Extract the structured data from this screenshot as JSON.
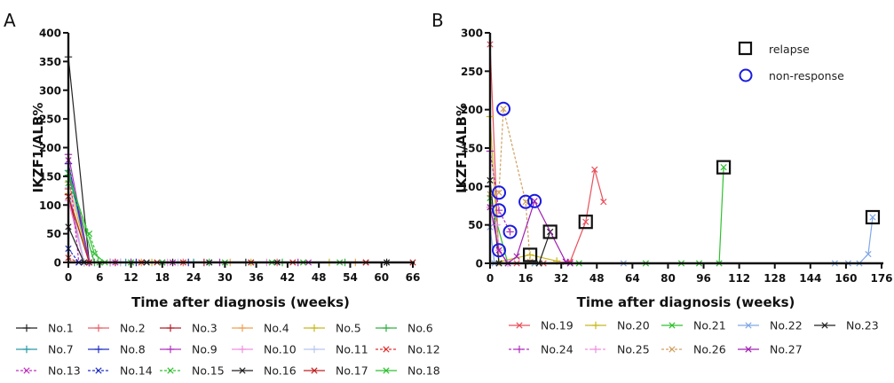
{
  "chart_data": [
    {
      "panel": "A",
      "type": "line",
      "xlabel": "Time after diagnosis (weeks)",
      "ylabel": "IKZF1/ALB%",
      "xlim": [
        0,
        66
      ],
      "ylim": [
        0,
        400
      ],
      "xticks": [
        0,
        6,
        12,
        18,
        24,
        30,
        36,
        42,
        48,
        54,
        60,
        66
      ],
      "yticks": [
        0,
        50,
        100,
        150,
        200,
        250,
        300,
        350,
        400
      ],
      "grid": false,
      "legend_position": "bottom",
      "series": [
        {
          "name": "No.1",
          "color": "#222222",
          "dash": false,
          "marker": "+",
          "x": [
            0,
            4,
            8,
            20,
            34,
            61
          ],
          "y": [
            358,
            0,
            0,
            0,
            0,
            0
          ]
        },
        {
          "name": "No.2",
          "color": "#e8606a",
          "dash": false,
          "marker": "+",
          "x": [
            0,
            3,
            10,
            22,
            40
          ],
          "y": [
            128,
            0,
            0,
            0,
            0
          ]
        },
        {
          "name": "No.3",
          "color": "#b0202a",
          "dash": false,
          "marker": "+",
          "x": [
            0,
            3,
            9,
            26
          ],
          "y": [
            118,
            0,
            0,
            0
          ]
        },
        {
          "name": "No.4",
          "color": "#f0a050",
          "dash": false,
          "marker": "+",
          "x": [
            0,
            4,
            14,
            31,
            55
          ],
          "y": [
            140,
            0,
            0,
            0,
            0
          ]
        },
        {
          "name": "No.5",
          "color": "#c8b820",
          "dash": false,
          "marker": "+",
          "x": [
            0,
            4,
            16,
            35,
            50
          ],
          "y": [
            120,
            0,
            0,
            0,
            0
          ]
        },
        {
          "name": "No.6",
          "color": "#30b040",
          "dash": false,
          "marker": "+",
          "x": [
            0,
            5,
            12,
            27,
            41,
            53
          ],
          "y": [
            152,
            0,
            0,
            0,
            0,
            0
          ]
        },
        {
          "name": "No.7",
          "color": "#2a9aa8",
          "dash": false,
          "marker": "+",
          "x": [
            0,
            4,
            11,
            24
          ],
          "y": [
            160,
            0,
            0,
            0
          ]
        },
        {
          "name": "No.8",
          "color": "#2030c0",
          "dash": false,
          "marker": "+",
          "x": [
            0,
            4,
            13,
            23
          ],
          "y": [
            172,
            0,
            0,
            0
          ]
        },
        {
          "name": "No.9",
          "color": "#b030c0",
          "dash": false,
          "marker": "+",
          "x": [
            0,
            4,
            12,
            29,
            44
          ],
          "y": [
            188,
            0,
            0,
            0,
            0
          ]
        },
        {
          "name": "No.10",
          "color": "#f090e0",
          "dash": false,
          "marker": "+",
          "x": [
            0,
            3,
            8,
            19,
            38
          ],
          "y": [
            108,
            0,
            0,
            0,
            0
          ]
        },
        {
          "name": "No.11",
          "color": "#b8c8f0",
          "dash": false,
          "marker": "+",
          "x": [
            0,
            3,
            10,
            21
          ],
          "y": [
            130,
            0,
            0,
            0
          ]
        },
        {
          "name": "No.12",
          "color": "#e03030",
          "dash": true,
          "marker": "x",
          "x": [
            0,
            2,
            14,
            22,
            43,
            57
          ],
          "y": [
            8,
            0,
            0,
            0,
            0,
            0
          ]
        },
        {
          "name": "No.13",
          "color": "#c030c0",
          "dash": true,
          "marker": "x",
          "x": [
            0,
            2,
            9,
            20,
            46
          ],
          "y": [
            178,
            0,
            0,
            0,
            0
          ]
        },
        {
          "name": "No.14",
          "color": "#2030c0",
          "dash": true,
          "marker": "x",
          "x": [
            0,
            2,
            4,
            18
          ],
          "y": [
            24,
            0,
            0,
            0
          ]
        },
        {
          "name": "No.15",
          "color": "#30c030",
          "dash": true,
          "marker": "x",
          "x": [
            0,
            4,
            6,
            12,
            30,
            52
          ],
          "y": [
            138,
            50,
            0,
            0,
            0,
            0
          ]
        },
        {
          "name": "No.16",
          "color": "#222222",
          "dash": false,
          "marker": "x",
          "x": [
            0,
            3,
            15,
            27,
            40,
            61
          ],
          "y": [
            62,
            0,
            0,
            0,
            0,
            0
          ]
        },
        {
          "name": "No.17",
          "color": "#c02020",
          "dash": false,
          "marker": "x",
          "x": [
            0,
            4,
            17,
            35,
            57,
            66
          ],
          "y": [
            115,
            0,
            0,
            0,
            0,
            0
          ]
        },
        {
          "name": "No.18",
          "color": "#30c030",
          "dash": false,
          "marker": "x",
          "x": [
            0,
            5,
            7,
            18,
            39,
            45
          ],
          "y": [
            155,
            15,
            0,
            0,
            0,
            0
          ]
        }
      ]
    },
    {
      "panel": "B",
      "type": "line",
      "xlabel": "Time after diagnosis (weeks)",
      "ylabel": "IKZF1/ALB%",
      "xlim": [
        0,
        176
      ],
      "ylim": [
        0,
        300
      ],
      "xticks": [
        0,
        16,
        32,
        48,
        64,
        80,
        96,
        112,
        128,
        144,
        160,
        176
      ],
      "yticks": [
        0,
        50,
        100,
        150,
        200,
        250,
        300
      ],
      "grid": false,
      "legend_position": "bottom",
      "annotation_legend": [
        {
          "label": "relapse",
          "symbol": "square",
          "color": "#111111"
        },
        {
          "label": "non-response",
          "symbol": "circle",
          "color": "#1a1ae0"
        }
      ],
      "series": [
        {
          "name": "No.19",
          "color": "#e8505a",
          "dash": false,
          "marker": "x",
          "x": [
            0,
            4,
            12,
            24,
            36,
            43,
            47,
            51
          ],
          "y": [
            285,
            0,
            0,
            0,
            2,
            54,
            122,
            80
          ]
        },
        {
          "name": "No.20",
          "color": "#c8b820",
          "dash": false,
          "marker": "+",
          "x": [
            0,
            4,
            18,
            30
          ],
          "y": [
            191,
            2,
            11,
            3
          ]
        },
        {
          "name": "No.21",
          "color": "#30c030",
          "dash": false,
          "marker": "x",
          "x": [
            0,
            8,
            20,
            40,
            70,
            86,
            94,
            103,
            105
          ],
          "y": [
            85,
            0,
            0,
            0,
            0,
            0,
            0,
            0,
            125
          ]
        },
        {
          "name": "No.22",
          "color": "#80a8e8",
          "dash": false,
          "marker": "x",
          "x": [
            0,
            2,
            20,
            60,
            155,
            161,
            166,
            170,
            172
          ],
          "y": [
            47,
            0,
            0,
            0,
            0,
            0,
            0,
            12,
            60
          ]
        },
        {
          "name": "No.23",
          "color": "#222222",
          "dash": false,
          "marker": "x",
          "x": [
            0,
            4,
            22,
            27
          ],
          "y": [
            108,
            0,
            0,
            41
          ]
        },
        {
          "name": "No.24",
          "color": "#b030c0",
          "dash": true,
          "marker": "+",
          "x": [
            0,
            4,
            9
          ],
          "y": [
            146,
            69,
            41
          ]
        },
        {
          "name": "No.25",
          "color": "#f090e0",
          "dash": true,
          "marker": "+",
          "x": [
            0,
            3,
            4,
            8
          ],
          "y": [
            73,
            50,
            17,
            0
          ]
        },
        {
          "name": "No.26",
          "color": "#d0a060",
          "dash": true,
          "marker": "x",
          "x": [
            0,
            4,
            6,
            16,
            18
          ],
          "y": [
            90,
            92,
            201,
            80,
            2
          ]
        },
        {
          "name": "No.27",
          "color": "#a020b0",
          "dash": false,
          "marker": "x",
          "x": [
            0,
            4,
            8,
            12,
            20,
            34,
            36
          ],
          "y": [
            73,
            17,
            0,
            9,
            81,
            2,
            0
          ]
        }
      ],
      "relapse_points": [
        {
          "series": "No.20",
          "x": 18,
          "y": 11
        },
        {
          "series": "No.23",
          "x": 27,
          "y": 41
        },
        {
          "series": "No.19",
          "x": 43,
          "y": 54
        },
        {
          "series": "No.21",
          "x": 105,
          "y": 125
        },
        {
          "series": "No.22",
          "x": 172,
          "y": 60
        }
      ],
      "non_response_points": [
        {
          "series": "No.26",
          "x": 6,
          "y": 201
        },
        {
          "series": "No.26",
          "x": 4,
          "y": 92
        },
        {
          "series": "No.24",
          "x": 4,
          "y": 69
        },
        {
          "series": "No.24",
          "x": 9,
          "y": 41
        },
        {
          "series": "No.27",
          "x": 4,
          "y": 17
        },
        {
          "series": "No.26",
          "x": 16,
          "y": 80
        },
        {
          "series": "No.27",
          "x": 20,
          "y": 81
        }
      ]
    }
  ]
}
